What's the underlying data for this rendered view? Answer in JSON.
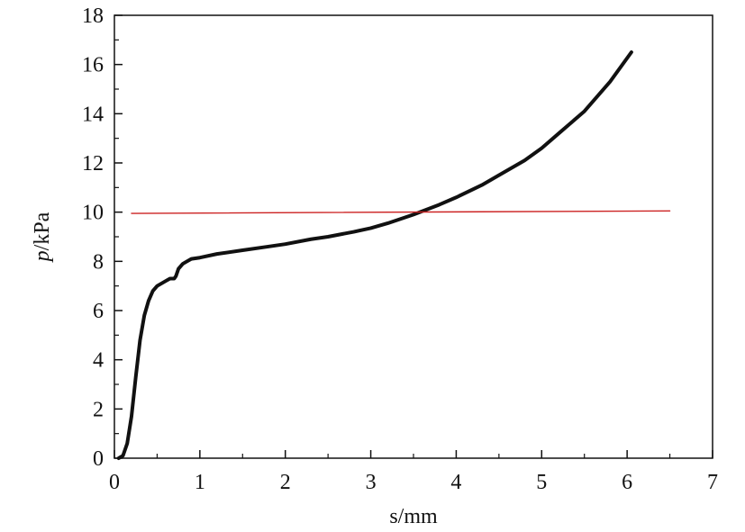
{
  "chart_data": {
    "type": "line",
    "title": "",
    "xlabel": "s/mm",
    "ylabel_italic": "p",
    "ylabel_rest": "/kPa",
    "xlim": [
      0,
      7
    ],
    "ylim": [
      0,
      18
    ],
    "x_ticks": [
      0,
      1,
      2,
      3,
      4,
      5,
      6,
      7
    ],
    "y_ticks": [
      0,
      2,
      4,
      6,
      8,
      10,
      12,
      14,
      16,
      18
    ],
    "grid": false,
    "legend": "none",
    "series": [
      {
        "color": "#111111",
        "x": [
          0.05,
          0.1,
          0.15,
          0.2,
          0.25,
          0.3,
          0.35,
          0.4,
          0.45,
          0.5,
          0.55,
          0.6,
          0.65,
          0.7,
          0.72,
          0.75,
          0.8,
          0.85,
          0.9,
          1.0,
          1.2,
          1.5,
          1.8,
          2.0,
          2.3,
          2.5,
          2.8,
          3.0,
          3.2,
          3.5,
          3.8,
          4.0,
          4.3,
          4.5,
          4.8,
          5.0,
          5.2,
          5.5,
          5.8,
          6.05
        ],
        "y": [
          0.0,
          0.1,
          0.6,
          1.7,
          3.3,
          4.8,
          5.8,
          6.4,
          6.8,
          7.0,
          7.1,
          7.2,
          7.3,
          7.3,
          7.4,
          7.7,
          7.9,
          8.0,
          8.1,
          8.15,
          8.3,
          8.45,
          8.6,
          8.7,
          8.9,
          9.0,
          9.2,
          9.35,
          9.55,
          9.9,
          10.3,
          10.6,
          11.1,
          11.5,
          12.1,
          12.6,
          13.2,
          14.1,
          15.3,
          16.5
        ]
      },
      {
        "color": "#cc2222",
        "x": [
          0.2,
          6.5
        ],
        "y": [
          9.95,
          10.05
        ]
      }
    ]
  }
}
